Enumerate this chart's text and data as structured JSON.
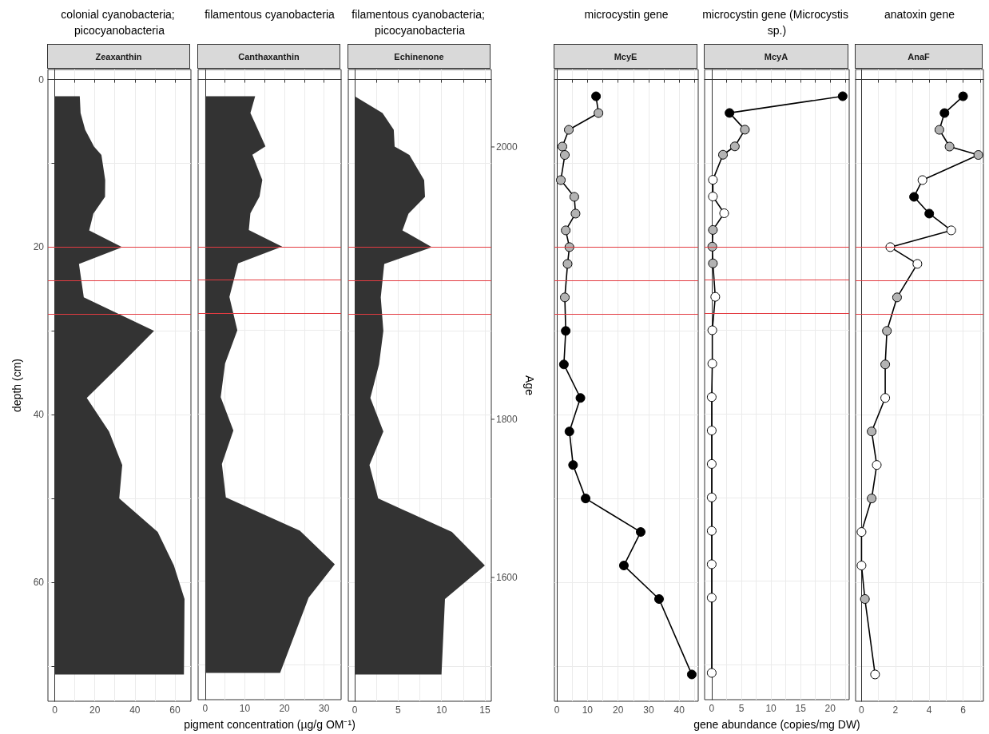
{
  "chart_data": [
    {
      "type": "area",
      "orientation": "horizontal",
      "title": "colonial cyanobacteria; picocyanobacteria",
      "subtitle": "Zeaxanthin",
      "ylabel": "depth (cm)",
      "x": [
        2,
        4,
        6,
        8,
        9,
        12,
        14,
        16,
        18,
        20,
        22,
        26,
        30,
        34,
        38,
        42,
        46,
        50,
        54,
        58,
        62,
        71
      ],
      "values": [
        12.5,
        12.9,
        15.2,
        19.6,
        23.3,
        25.2,
        25.1,
        19.3,
        17.2,
        33.7,
        12.1,
        14.5,
        49.6,
        33,
        16.0,
        27.1,
        33.7,
        32.2,
        51.4,
        59.5,
        64.8,
        64.5
      ],
      "color": "#333333",
      "xlim": [
        -3.4,
        68
      ],
      "xticks": [
        0,
        {
          "value": 10,
          "label": null
        },
        20,
        {
          "value": 30,
          "label": null
        },
        40,
        {
          "value": 50,
          "label": null
        },
        60
      ],
      "ylim": [
        74.2,
        -1.2
      ],
      "yticks": [
        0,
        {
          "value": 10,
          "label": null
        },
        20,
        {
          "value": 30,
          "label": null
        },
        40,
        {
          "value": 50,
          "label": null
        },
        60,
        {
          "value": 70,
          "label": null
        }
      ],
      "grid": true,
      "ref_lines": [
        {
          "axis": "y",
          "value": 20,
          "color": "#e33b41"
        },
        {
          "axis": "y",
          "value": 24,
          "color": "#e33b41"
        },
        {
          "axis": "y",
          "value": 28,
          "color": "#e33b41"
        }
      ]
    },
    {
      "type": "area",
      "orientation": "horizontal",
      "title": "filamentous cyanobacteria",
      "subtitle": "Canthaxanthin",
      "xlabel": "pigment concentration (µg/g OM⁻¹)",
      "x": [
        2,
        4,
        6,
        8,
        9,
        12,
        14,
        16,
        18,
        20,
        22,
        26,
        30,
        34,
        38,
        42,
        46,
        50,
        54,
        58,
        62,
        71
      ],
      "values": [
        12.6,
        11.4,
        13.3,
        15.2,
        11.9,
        14.4,
        13.7,
        11.4,
        11.0,
        19.4,
        8.3,
        6.1,
        8.1,
        5.0,
        3.9,
        7.1,
        4.2,
        5.2,
        23.9,
        32.7,
        26.1,
        18.9
      ],
      "color": "#333333",
      "xlim": [
        -1.8,
        34.3
      ],
      "xticks": [
        0,
        {
          "value": 5,
          "label": null
        },
        10,
        {
          "value": 15,
          "label": null
        },
        20,
        {
          "value": 25,
          "label": null
        },
        30
      ],
      "ylim": [
        74.2,
        -1.2
      ],
      "yticks": [
        0,
        {
          "value": 10,
          "label": null
        },
        20,
        {
          "value": 30,
          "label": null
        },
        40,
        {
          "value": 50,
          "label": null
        },
        60,
        {
          "value": 70,
          "label": null
        }
      ],
      "tick_labels": "x",
      "grid": true,
      "ref_lines": [
        {
          "axis": "y",
          "value": 20,
          "color": "#e33b41"
        },
        {
          "axis": "y",
          "value": 24,
          "color": "#e33b41"
        },
        {
          "axis": "y",
          "value": 28,
          "color": "#e33b41"
        }
      ]
    },
    {
      "type": "area",
      "orientation": "horizontal",
      "title": "filamentous cyanobacteria; picocyanobacteria",
      "subtitle": "Echinenone",
      "y2label": "Age",
      "x": [
        2,
        4,
        6,
        8,
        9,
        12,
        14,
        16,
        18,
        20,
        22,
        26,
        30,
        34,
        38,
        42,
        46,
        50,
        54,
        58,
        62,
        71
      ],
      "values": [
        0,
        3.2,
        4.5,
        4.6,
        6.3,
        8.0,
        8.1,
        6.2,
        5.5,
        8.9,
        3.4,
        3.0,
        3.3,
        2.8,
        1.8,
        3.3,
        1.7,
        2.7,
        11.2,
        15.0,
        10.4,
        10.0
      ],
      "color": "#333333",
      "xlim": [
        -0.74,
        15.74
      ],
      "xticks": [
        0,
        {
          "value": 2.5,
          "label": null
        },
        5,
        {
          "value": 7.5,
          "label": null
        },
        10,
        {
          "value": 12.5,
          "label": null
        },
        15
      ],
      "ylim": [
        74.2,
        -1.2
      ],
      "yticks": [
        0,
        {
          "value": 10,
          "label": null
        },
        20,
        {
          "value": 30,
          "label": null
        },
        40,
        {
          "value": 50,
          "label": null
        },
        60,
        {
          "value": 70,
          "label": null
        }
      ],
      "annotations": [
        "2000",
        "1800",
        "1600"
      ],
      "tick_labels": "x",
      "grid": true,
      "ref_lines": [
        {
          "axis": "y",
          "value": 20,
          "color": "#e33b41"
        },
        {
          "axis": "y",
          "value": 24,
          "color": "#e33b41"
        },
        {
          "axis": "y",
          "value": 28,
          "color": "#e33b41"
        }
      ]
    },
    {
      "type": "line",
      "orientation": "horizontal",
      "title": "microcystin gene",
      "subtitle": "McyE",
      "marker": "circle",
      "x": [
        2,
        4,
        6,
        8,
        9,
        12,
        14,
        16,
        18,
        20,
        22,
        26,
        30,
        34,
        38,
        42,
        46,
        50,
        54,
        58,
        62,
        71
      ],
      "values": [
        12.8,
        13.6,
        3.9,
        1.8,
        2.6,
        1.3,
        5.7,
        6.1,
        2.9,
        4.1,
        3.5,
        2.6,
        2.9,
        2.3,
        7.7,
        4.1,
        5.3,
        9.4,
        27.4,
        21.9,
        33.4,
        44.1
      ],
      "color": "#000000",
      "colors": [
        "#000000",
        "#b3b3b3",
        "#b3b3b3",
        "#b3b3b3",
        "#b3b3b3",
        "#b3b3b3",
        "#b3b3b3",
        "#b3b3b3",
        "#b3b3b3",
        "#b3b3b3",
        "#b3b3b3",
        "#b3b3b3",
        "#000000",
        "#000000",
        "#000000",
        "#000000",
        "#000000",
        "#000000",
        "#000000",
        "#000000",
        "#000000",
        "#000000"
      ],
      "xlim": [
        -0.8,
        46.2
      ],
      "xticks": [
        0,
        {
          "value": 5,
          "label": null
        },
        10,
        {
          "value": 15,
          "label": null
        },
        20,
        {
          "value": 25,
          "label": null
        },
        30,
        {
          "value": 35,
          "label": null
        },
        40,
        {
          "value": 45,
          "label": null
        }
      ],
      "ylim": [
        74.2,
        -1.2
      ],
      "yticks": [
        0,
        {
          "value": 10,
          "label": null
        },
        20,
        {
          "value": 30,
          "label": null
        },
        40,
        {
          "value": 50,
          "label": null
        },
        60,
        {
          "value": 70,
          "label": null
        }
      ],
      "tick_labels": "x",
      "grid": true,
      "ref_lines": [
        {
          "axis": "y",
          "value": 20,
          "color": "#e33b41"
        },
        {
          "axis": "y",
          "value": 24,
          "color": "#e33b41"
        },
        {
          "axis": "y",
          "value": 28,
          "color": "#e33b41"
        }
      ]
    },
    {
      "type": "line",
      "orientation": "horizontal",
      "title": "microcystin gene (Microcystis sp.)",
      "subtitle": "McyA",
      "xlabel": "gene abundance (copies/mg DW)",
      "marker": "circle",
      "x": [
        2,
        4,
        6,
        8,
        9,
        12,
        14,
        16,
        18,
        20,
        22,
        26,
        30,
        34,
        38,
        42,
        46,
        50,
        54,
        58,
        62,
        71
      ],
      "values": [
        22.1,
        3.0,
        5.6,
        3.9,
        1.9,
        0.2,
        0.2,
        2.1,
        0.2,
        0.1,
        0.2,
        0.6,
        0.1,
        0.1,
        0,
        0,
        0,
        0,
        0,
        0,
        0,
        0
      ],
      "color": "#000000",
      "colors": [
        "#000000",
        "#000000",
        "#b3b3b3",
        "#b3b3b3",
        "#b3b3b3",
        "#ffffff",
        "#ffffff",
        "#ffffff",
        "#b3b3b3",
        "#b3b3b3",
        "#b3b3b3",
        "#ffffff",
        "#ffffff",
        "#ffffff",
        "#ffffff",
        "#ffffff",
        "#ffffff",
        "#ffffff",
        "#ffffff",
        "#ffffff",
        "#ffffff",
        "#ffffff"
      ],
      "xlim": [
        -1.2,
        23.2
      ],
      "xticks": [
        0,
        {
          "value": 2.5,
          "label": null
        },
        5,
        {
          "value": 7.5,
          "label": null
        },
        10,
        {
          "value": 12.5,
          "label": null
        },
        15,
        {
          "value": 17.5,
          "label": null
        },
        20,
        {
          "value": 22.5,
          "label": null
        }
      ],
      "ylim": [
        74.2,
        -1.2
      ],
      "yticks": [
        0,
        {
          "value": 10,
          "label": null
        },
        20,
        {
          "value": 30,
          "label": null
        },
        40,
        {
          "value": 50,
          "label": null
        },
        60,
        {
          "value": 70,
          "label": null
        }
      ],
      "tick_labels": "x",
      "grid": true,
      "ref_lines": [
        {
          "axis": "y",
          "value": 20,
          "color": "#e33b41"
        },
        {
          "axis": "y",
          "value": 24,
          "color": "#e33b41"
        },
        {
          "axis": "y",
          "value": 28,
          "color": "#e33b41"
        }
      ]
    },
    {
      "type": "line",
      "orientation": "horizontal",
      "title": "anatoxin gene",
      "subtitle": "AnaF",
      "marker": "circle",
      "x": [
        2,
        4,
        6,
        8,
        9,
        12,
        14,
        16,
        18,
        20,
        22,
        26,
        30,
        34,
        38,
        42,
        46,
        50,
        54,
        58,
        62,
        71
      ],
      "values": [
        6.0,
        4.9,
        4.6,
        5.2,
        6.9,
        3.6,
        3.1,
        4.0,
        5.3,
        1.7,
        3.3,
        2.1,
        1.5,
        1.4,
        1.4,
        0.6,
        0.9,
        0.6,
        0,
        0,
        0.2,
        0.8
      ],
      "color": "#000000",
      "colors": [
        "#000000",
        "#000000",
        "#b3b3b3",
        "#b3b3b3",
        "#b3b3b3",
        "#ffffff",
        "#000000",
        "#000000",
        "#ffffff",
        "#ffffff",
        "#ffffff",
        "#b3b3b3",
        "#b3b3b3",
        "#b3b3b3",
        "#ffffff",
        "#b3b3b3",
        "#ffffff",
        "#b3b3b3",
        "#ffffff",
        "#ffffff",
        "#b3b3b3",
        "#ffffff"
      ],
      "xlim": [
        -0.35,
        7.2
      ],
      "xticks": [
        0,
        {
          "value": 1,
          "label": null
        },
        2,
        {
          "value": 3,
          "label": null
        },
        4,
        {
          "value": 5,
          "label": null
        },
        6,
        {
          "value": 7,
          "label": null
        }
      ],
      "ylim": [
        74.2,
        -1.2
      ],
      "yticks": [
        0,
        {
          "value": 10,
          "label": null
        },
        20,
        {
          "value": 30,
          "label": null
        },
        40,
        {
          "value": 50,
          "label": null
        },
        60,
        {
          "value": 70,
          "label": null
        }
      ],
      "tick_labels": "x",
      "grid": true,
      "ref_lines": [
        {
          "axis": "y",
          "value": 20,
          "color": "#e33b41"
        },
        {
          "axis": "y",
          "value": 24,
          "color": "#e33b41"
        },
        {
          "axis": "y",
          "value": 28,
          "color": "#e33b41"
        }
      ]
    }
  ]
}
